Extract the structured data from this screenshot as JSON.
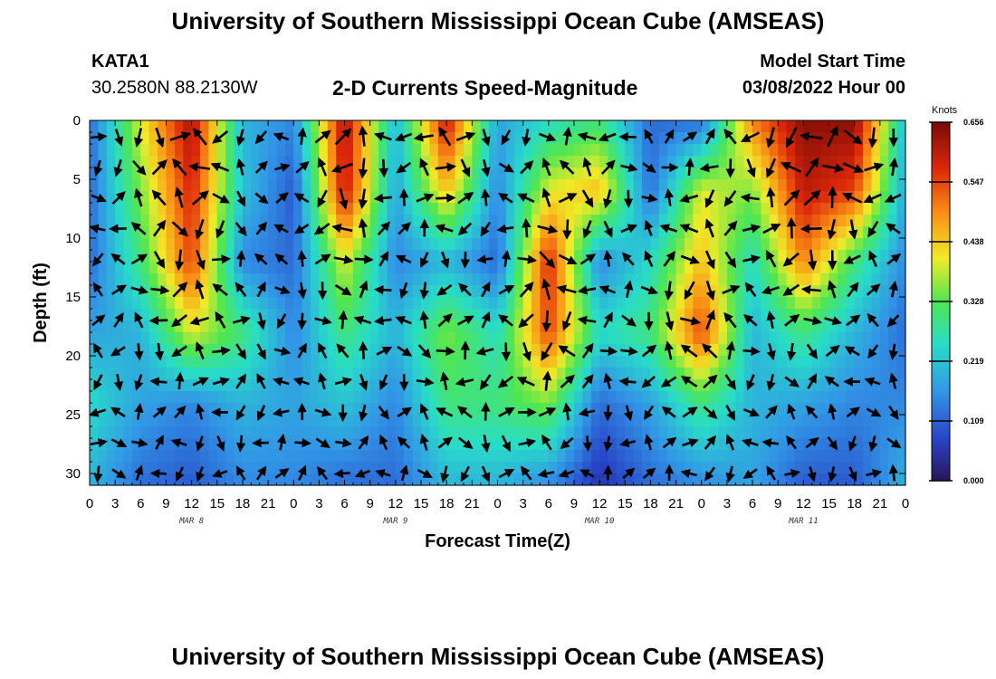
{
  "header": {
    "title": "University of Southern Mississippi Ocean Cube (AMSEAS)",
    "station": "KATA1",
    "coords": "30.2580N  88.2130W",
    "subtitle": "2-D Currents Speed-Magnitude",
    "start_label": "Model Start Time",
    "start_value": "03/08/2022 Hour 00"
  },
  "footer": {
    "title": "University of Southern Mississippi Ocean Cube (AMSEAS)"
  },
  "chart_data": {
    "type": "heatmap",
    "xlabel": "Forecast Time(Z)",
    "ylabel": "Depth (ft)",
    "xlim": [
      0,
      96
    ],
    "ylim": [
      0,
      31
    ],
    "x_tick_labels": [
      "0",
      "3",
      "6",
      "9",
      "12",
      "15",
      "18",
      "21",
      "0",
      "3",
      "6",
      "9",
      "12",
      "15",
      "18",
      "21",
      "0",
      "3",
      "6",
      "9",
      "12",
      "15",
      "18",
      "21",
      "0",
      "3",
      "6",
      "9",
      "12",
      "15",
      "18",
      "21",
      "0"
    ],
    "y_ticks": [
      0,
      5,
      10,
      15,
      20,
      25,
      30
    ],
    "date_labels": [
      {
        "label": "MAR 8",
        "hour": 12
      },
      {
        "label": "MAR 9",
        "hour": 36
      },
      {
        "label": "MAR 10",
        "hour": 60
      },
      {
        "label": "MAR 11",
        "hour": 84
      }
    ],
    "colorbar": {
      "unit": "Knots",
      "ticks": [
        "0.000",
        "0.109",
        "0.219",
        "0.328",
        "0.438",
        "0.547",
        "0.656"
      ],
      "range": [
        0,
        0.656
      ]
    },
    "depths": [
      0,
      6,
      12,
      18,
      24,
      31
    ],
    "hours": [
      0,
      6,
      12,
      18,
      24,
      30,
      36,
      42,
      48,
      54,
      60,
      66,
      72,
      78,
      84,
      90,
      96
    ],
    "speed_grid": [
      [
        0.12,
        0.4,
        0.62,
        0.2,
        0.15,
        0.62,
        0.2,
        0.6,
        0.18,
        0.25,
        0.3,
        0.12,
        0.12,
        0.5,
        0.64,
        0.64,
        0.2
      ],
      [
        0.12,
        0.35,
        0.58,
        0.22,
        0.1,
        0.6,
        0.18,
        0.45,
        0.15,
        0.4,
        0.45,
        0.12,
        0.4,
        0.35,
        0.6,
        0.55,
        0.18
      ],
      [
        0.12,
        0.3,
        0.55,
        0.15,
        0.12,
        0.4,
        0.15,
        0.2,
        0.12,
        0.58,
        0.15,
        0.25,
        0.45,
        0.25,
        0.5,
        0.3,
        0.15
      ],
      [
        0.18,
        0.2,
        0.4,
        0.3,
        0.15,
        0.3,
        0.2,
        0.35,
        0.25,
        0.55,
        0.25,
        0.3,
        0.55,
        0.2,
        0.3,
        0.2,
        0.12
      ],
      [
        0.25,
        0.18,
        0.15,
        0.2,
        0.18,
        0.22,
        0.15,
        0.3,
        0.3,
        0.35,
        0.12,
        0.18,
        0.3,
        0.2,
        0.18,
        0.15,
        0.15
      ],
      [
        0.2,
        0.12,
        0.1,
        0.15,
        0.15,
        0.12,
        0.12,
        0.2,
        0.2,
        0.15,
        0.05,
        0.12,
        0.15,
        0.18,
        0.1,
        0.1,
        0.2
      ]
    ],
    "vector_grid": {
      "cols": 41,
      "rows": 12,
      "hour_step": 2.4,
      "depth_step": 2.6
    }
  }
}
